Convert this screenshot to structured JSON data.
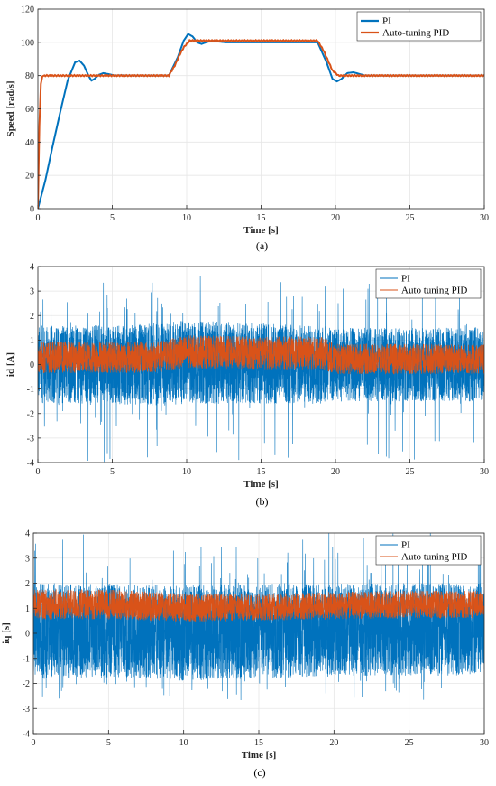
{
  "chart_data": [
    {
      "type": "line",
      "caption": "(a)",
      "xlabel": "Time [s]",
      "ylabel": "Speed [rad/s]",
      "xlim": [
        0,
        30
      ],
      "ylim": [
        0,
        120
      ],
      "xticks": [
        "0",
        "5",
        "10",
        "15",
        "20",
        "25",
        "30"
      ],
      "yticks": [
        "0",
        "20",
        "40",
        "60",
        "80",
        "100",
        "120"
      ],
      "grid": true,
      "legend_position": "top-right",
      "series": [
        {
          "name": "PI",
          "color": "#0072BD",
          "x": [
            0,
            0.5,
            1.0,
            1.5,
            2.0,
            2.5,
            2.8,
            3.1,
            3.4,
            3.6,
            3.8,
            4.1,
            4.4,
            4.8,
            5.2,
            5.6,
            6,
            7,
            8,
            8.8,
            9.4,
            9.8,
            10.1,
            10.4,
            10.7,
            11.0,
            11.3,
            11.7,
            12.1,
            12.6,
            13,
            14,
            15,
            16,
            17,
            18,
            18.8,
            19.4,
            19.8,
            20.1,
            20.4,
            20.8,
            21.2,
            21.6,
            22,
            23,
            24,
            25,
            26,
            27,
            28,
            29,
            30
          ],
          "y": [
            0,
            17,
            38,
            58,
            77,
            88,
            89,
            86,
            80,
            77,
            78,
            80.5,
            81.5,
            80.8,
            80,
            80.2,
            80,
            80,
            80,
            80,
            91,
            101,
            105,
            103.5,
            100,
            99,
            100,
            101,
            100.5,
            100,
            100,
            100,
            100,
            100,
            100,
            100,
            100,
            88,
            78,
            76.5,
            78,
            81.5,
            82,
            81,
            80,
            80,
            80,
            80,
            80,
            80,
            80,
            80,
            80
          ]
        },
        {
          "name": "Auto-tuning PID",
          "color": "#D95319",
          "x": [
            0,
            0.1,
            0.2,
            0.3,
            0.4,
            0.5,
            1,
            2,
            3,
            4,
            5,
            6,
            7,
            8,
            8.8,
            9.2,
            9.5,
            9.8,
            10.2,
            11,
            12,
            13,
            14,
            15,
            16,
            17,
            18,
            18.8,
            19.2,
            19.5,
            19.8,
            20.2,
            21,
            22,
            23,
            24,
            25,
            26,
            27,
            28,
            29,
            30
          ],
          "y": [
            0,
            50,
            75,
            79.5,
            80,
            80,
            80,
            80,
            80,
            80,
            80,
            80,
            80,
            80,
            80,
            86,
            92,
            97,
            101,
            101,
            101,
            101,
            101,
            101,
            101,
            101,
            101,
            101,
            95,
            89,
            83,
            80,
            80,
            80,
            80,
            80,
            80,
            80,
            80,
            80,
            80,
            80
          ]
        }
      ]
    },
    {
      "type": "line",
      "caption": "(b)",
      "xlabel": "Time [s]",
      "ylabel": "id [A]",
      "xlim": [
        0,
        30
      ],
      "ylim": [
        -4,
        4
      ],
      "xticks": [
        "0",
        "5",
        "10",
        "15",
        "20",
        "25",
        "30"
      ],
      "yticks": [
        "-4",
        "-3",
        "-2",
        "-1",
        "0",
        "1",
        "2",
        "3",
        "4"
      ],
      "grid": true,
      "legend_position": "top-right",
      "series": [
        {
          "name": "PI",
          "color": "#0072BD",
          "x": [
            0,
            5,
            8,
            10,
            15,
            19,
            20,
            25,
            30
          ],
          "y_center": [
            0.2,
            0.2,
            0.2,
            0.3,
            0.2,
            0.3,
            0.1,
            0.1,
            0.2
          ],
          "y_band_min": [
            -1.6,
            -1.6,
            -1.7,
            -1.6,
            -1.6,
            -1.6,
            -1.5,
            -1.5,
            -1.5
          ],
          "y_band_max": [
            1.6,
            1.6,
            1.7,
            1.8,
            1.7,
            1.6,
            1.5,
            1.5,
            1.5
          ],
          "y_peak_min": -4,
          "y_peak_max": 3.6
        },
        {
          "name": "Auto tuning PID",
          "color": "#D95319",
          "x": [
            0,
            5,
            8,
            10,
            15,
            19,
            20,
            25,
            30
          ],
          "y_center": [
            0.3,
            0.3,
            0.3,
            0.55,
            0.5,
            0.5,
            0.2,
            0.25,
            0.25
          ],
          "y_band_min": [
            -0.35,
            -0.35,
            -0.35,
            -0.15,
            -0.2,
            -0.2,
            -0.4,
            -0.4,
            -0.4
          ],
          "y_band_max": [
            0.95,
            0.95,
            0.95,
            1.2,
            1.15,
            1.15,
            0.85,
            0.85,
            0.85
          ]
        }
      ]
    },
    {
      "type": "line",
      "caption": "(c)",
      "xlabel": "Time [s]",
      "ylabel": "iq [s]",
      "xlim": [
        0,
        30
      ],
      "ylim": [
        -4,
        4
      ],
      "xticks": [
        "0",
        "5",
        "10",
        "15",
        "20",
        "25",
        "30"
      ],
      "yticks": [
        "-4",
        "-3",
        "-2",
        "-1",
        "0",
        "1",
        "2",
        "3",
        "4"
      ],
      "grid": true,
      "legend_position": "top-right",
      "series": [
        {
          "name": "PI",
          "color": "#0072BD",
          "x": [
            0,
            5,
            10,
            15,
            20,
            25,
            30
          ],
          "y_center": [
            0.2,
            0.2,
            0.1,
            0.2,
            0.2,
            0.2,
            0.2
          ],
          "y_band_min": [
            -1.8,
            -1.8,
            -1.9,
            -1.8,
            -1.7,
            -1.7,
            -1.7
          ],
          "y_band_max": [
            2.0,
            2.0,
            1.9,
            2.0,
            2.0,
            2.0,
            2.0
          ],
          "y_peak_min": -2.7,
          "y_peak_max": 4.0
        },
        {
          "name": "Auto tuning PID",
          "color": "#D95319",
          "x": [
            0,
            5,
            10,
            15,
            20,
            25,
            30
          ],
          "y_center": [
            1.15,
            1.15,
            1.05,
            1.05,
            1.1,
            1.15,
            1.15
          ],
          "y_band_min": [
            0.55,
            0.55,
            0.45,
            0.5,
            0.55,
            0.6,
            0.6
          ],
          "y_band_max": [
            1.75,
            1.75,
            1.6,
            1.6,
            1.65,
            1.7,
            1.7
          ]
        }
      ]
    }
  ]
}
